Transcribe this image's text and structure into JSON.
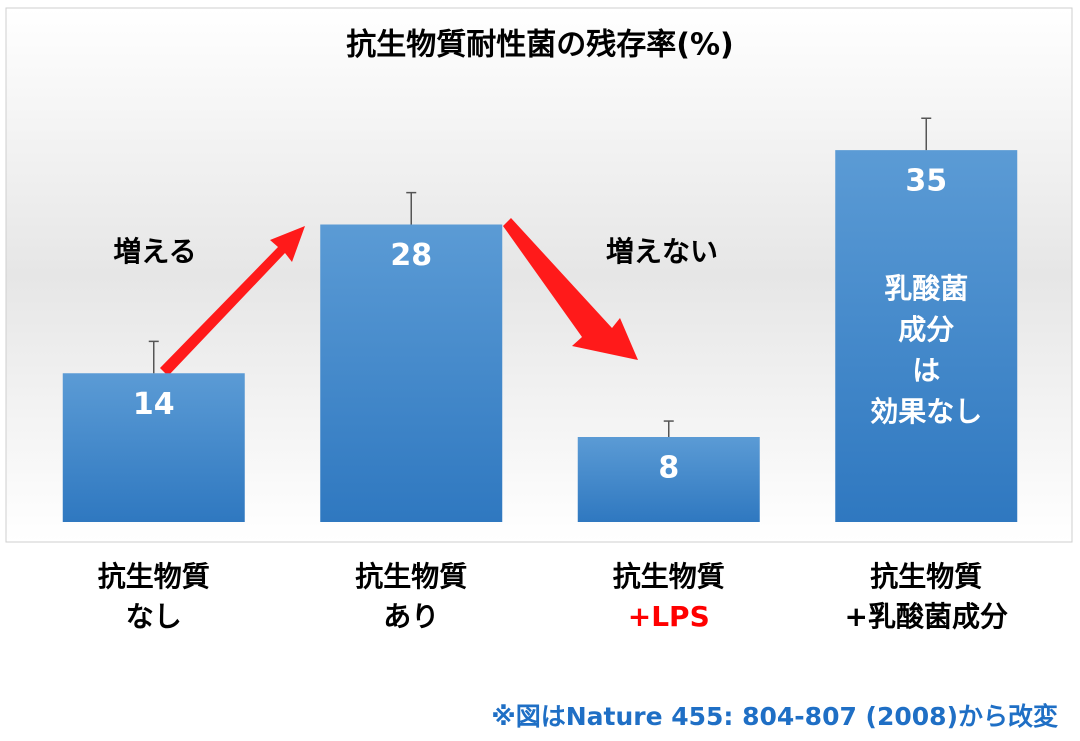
{
  "chart_data": {
    "type": "bar",
    "title": "抗生物質耐性菌の残存率(%)",
    "categories": [
      [
        "抗生物質",
        "なし"
      ],
      [
        "抗生物質",
        "あり"
      ],
      [
        "抗生物質",
        "+LPS"
      ],
      [
        "抗生物質",
        "+乳酸菌成分"
      ]
    ],
    "category_colors": [
      [
        "#000000",
        "#000000"
      ],
      [
        "#000000",
        "#000000"
      ],
      [
        "#000000",
        "#ff0000"
      ],
      [
        "#000000",
        "#000000"
      ]
    ],
    "values": [
      14,
      28,
      8,
      35
    ],
    "errors": [
      3,
      3,
      1.5,
      3
    ],
    "color": "#3f87cf",
    "ylim": [
      0,
      40
    ],
    "bar_notes": [
      null,
      null,
      null,
      [
        "乳酸菌",
        "成分",
        "は",
        "効果なし"
      ]
    ],
    "annotations": [
      "増える",
      "増えない"
    ],
    "source": "※図はNature 455: 804-807 (2008)から改変"
  }
}
